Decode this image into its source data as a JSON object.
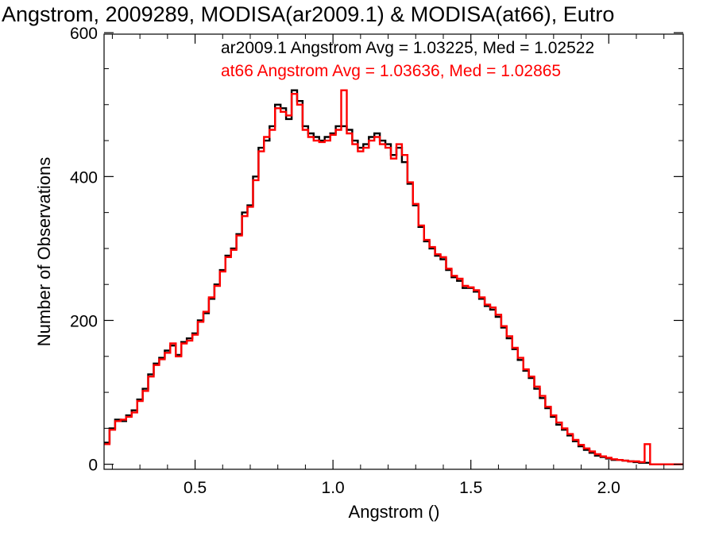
{
  "chart_data": {
    "type": "line",
    "style": "step-histogram",
    "title": "Angstrom, 2009289, MODISA(ar2009.1) & MODISA(at66), Eutro",
    "xlabel": "Angstrom ()",
    "ylabel": "Number of Observations",
    "xlim": [
      0.17,
      2.27
    ],
    "ylim": [
      -7,
      598
    ],
    "x_ticks": [
      0.5,
      1.0,
      1.5,
      2.0
    ],
    "x_tick_labels": [
      "0.5",
      "1.0",
      "1.5",
      "2.0"
    ],
    "y_ticks": [
      0,
      200,
      400,
      600
    ],
    "y_tick_labels": [
      "0",
      "200",
      "400",
      "600"
    ],
    "grid": false,
    "legend_position": "top-right",
    "x": [
      0.18,
      0.2,
      0.22,
      0.24,
      0.26,
      0.28,
      0.3,
      0.32,
      0.34,
      0.36,
      0.38,
      0.4,
      0.42,
      0.44,
      0.46,
      0.48,
      0.5,
      0.52,
      0.54,
      0.56,
      0.58,
      0.6,
      0.62,
      0.64,
      0.66,
      0.68,
      0.7,
      0.72,
      0.74,
      0.76,
      0.78,
      0.8,
      0.82,
      0.84,
      0.86,
      0.88,
      0.9,
      0.92,
      0.94,
      0.96,
      0.98,
      1.0,
      1.02,
      1.04,
      1.06,
      1.08,
      1.1,
      1.12,
      1.14,
      1.16,
      1.18,
      1.2,
      1.22,
      1.24,
      1.26,
      1.28,
      1.3,
      1.32,
      1.34,
      1.36,
      1.38,
      1.4,
      1.42,
      1.44,
      1.46,
      1.48,
      1.5,
      1.52,
      1.54,
      1.56,
      1.58,
      1.6,
      1.62,
      1.64,
      1.66,
      1.68,
      1.7,
      1.72,
      1.74,
      1.76,
      1.78,
      1.8,
      1.82,
      1.84,
      1.86,
      1.88,
      1.9,
      1.92,
      1.94,
      1.96,
      1.98,
      2.0,
      2.02,
      2.04,
      2.06,
      2.08,
      2.1,
      2.12,
      2.14,
      2.16,
      2.18,
      2.2,
      2.22,
      2.24,
      2.26
    ],
    "series": [
      {
        "name": "ar2009.1",
        "color": "#000000",
        "values": [
          30,
          50,
          62,
          60,
          68,
          75,
          90,
          105,
          125,
          140,
          148,
          158,
          165,
          152,
          170,
          175,
          182,
          200,
          210,
          230,
          250,
          270,
          290,
          300,
          320,
          350,
          360,
          400,
          440,
          450,
          470,
          500,
          495,
          480,
          520,
          505,
          470,
          460,
          455,
          450,
          455,
          460,
          470,
          470,
          465,
          450,
          440,
          445,
          455,
          460,
          450,
          445,
          430,
          440,
          420,
          390,
          360,
          330,
          310,
          300,
          290,
          285,
          270,
          260,
          255,
          245,
          245,
          240,
          230,
          220,
          215,
          205,
          190,
          175,
          160,
          145,
          130,
          120,
          105,
          92,
          78,
          66,
          55,
          48,
          40,
          32,
          25,
          20,
          16,
          12,
          10,
          8,
          6,
          6,
          5,
          4,
          3,
          2,
          2,
          0,
          0,
          0,
          0,
          0,
          0
        ]
      },
      {
        "name": "at66",
        "color": "#ff0000",
        "values": [
          28,
          48,
          60,
          62,
          66,
          72,
          88,
          102,
          122,
          138,
          146,
          155,
          168,
          150,
          168,
          172,
          180,
          198,
          212,
          232,
          248,
          268,
          288,
          298,
          318,
          345,
          358,
          395,
          435,
          455,
          465,
          495,
          490,
          485,
          515,
          500,
          465,
          455,
          450,
          448,
          450,
          458,
          465,
          520,
          460,
          445,
          435,
          440,
          450,
          455,
          445,
          440,
          425,
          445,
          430,
          392,
          362,
          332,
          312,
          302,
          292,
          288,
          272,
          262,
          258,
          248,
          246,
          242,
          232,
          222,
          218,
          208,
          192,
          178,
          162,
          148,
          132,
          122,
          108,
          95,
          80,
          68,
          58,
          50,
          42,
          34,
          27,
          22,
          18,
          14,
          11,
          9,
          7,
          6,
          5,
          4,
          4,
          3,
          28,
          0,
          0,
          0,
          0,
          0,
          0
        ]
      }
    ],
    "annotations": [
      {
        "text": "ar2009.1 Angstrom Avg = 1.03225, Med = 1.02522",
        "color": "#000000"
      },
      {
        "text": "at66 Angstrom Avg = 1.03636, Med = 1.02865",
        "color": "#ff0000"
      }
    ]
  }
}
